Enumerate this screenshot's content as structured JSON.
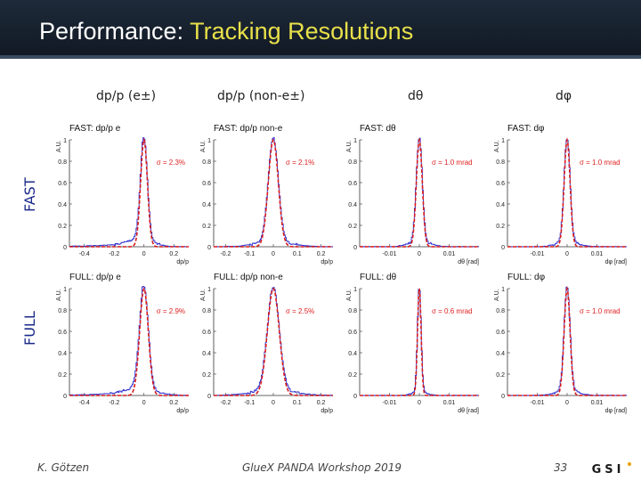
{
  "title": {
    "prefix": "Performance: ",
    "highlight": "Tracking Resolutions"
  },
  "column_headers": [
    "dp/p (e±)",
    "dp/p (non-e±)",
    "dθ",
    "dφ"
  ],
  "row_labels": [
    "FAST",
    "FULL"
  ],
  "footer": {
    "author": "K. Götzen",
    "event": "GlueX PANDA Workshop 2019",
    "page": "33"
  },
  "logo_text": "GSI",
  "colors": {
    "data": "#2a2ad0",
    "fit": "#d81c1c",
    "sigma": "#e02020"
  },
  "chart_data": [
    {
      "type": "line",
      "title": "FAST: dp/p e",
      "xlabel": "dp/p",
      "ylabel": "A.U.",
      "xticks": [
        "-0.4",
        "-0.2",
        "0",
        "0.2"
      ],
      "xlim": [
        -0.5,
        0.3
      ],
      "yticks": [
        "0",
        "0.2",
        "0.4",
        "0.6",
        "0.8",
        "1"
      ],
      "ylim": [
        0,
        1
      ],
      "annotation": "σ = 2.3%",
      "mean": 0,
      "sigma": 0.023,
      "tail": "left"
    },
    {
      "type": "line",
      "title": "FAST: dp/p non-e",
      "xlabel": "dp/p",
      "ylabel": "A.U.",
      "xticks": [
        "-0.2",
        "-0.1",
        "0",
        "0.1",
        "0.2"
      ],
      "xlim": [
        -0.25,
        0.25
      ],
      "yticks": [
        "0",
        "0.2",
        "0.4",
        "0.6",
        "0.8",
        "1"
      ],
      "ylim": [
        0,
        1
      ],
      "annotation": "σ = 2.1%",
      "mean": 0,
      "sigma": 0.021,
      "tail": "none"
    },
    {
      "type": "line",
      "title": "FAST: dθ",
      "xlabel": "dθ [rad]",
      "ylabel": "A.U.",
      "xticks": [
        "-0.01",
        "0",
        "0.01"
      ],
      "xlim": [
        -0.02,
        0.02
      ],
      "yticks": [
        "0",
        "0.2",
        "0.4",
        "0.6",
        "0.8",
        "1"
      ],
      "ylim": [
        0,
        1
      ],
      "annotation": "σ = 1.0 mrad",
      "mean": 0,
      "sigma": 0.001,
      "tail": "none"
    },
    {
      "type": "line",
      "title": "FAST: dφ",
      "xlabel": "dφ [rad]",
      "ylabel": "A.U.",
      "xticks": [
        "-0.01",
        "0",
        "0.01"
      ],
      "xlim": [
        -0.02,
        0.02
      ],
      "yticks": [
        "0",
        "0.2",
        "0.4",
        "0.6",
        "0.8",
        "1"
      ],
      "ylim": [
        0,
        1
      ],
      "annotation": "σ = 1.0 mrad",
      "mean": 0,
      "sigma": 0.001,
      "tail": "none"
    },
    {
      "type": "line",
      "title": "FULL: dp/p e",
      "xlabel": "dp/p",
      "ylabel": "A.U.",
      "xticks": [
        "-0.4",
        "-0.2",
        "0",
        "0.2"
      ],
      "xlim": [
        -0.5,
        0.3
      ],
      "yticks": [
        "0",
        "0.2",
        "0.4",
        "0.6",
        "0.8",
        "1"
      ],
      "ylim": [
        0,
        1
      ],
      "annotation": "σ = 2.9%",
      "mean": 0,
      "sigma": 0.029,
      "tail": "left"
    },
    {
      "type": "line",
      "title": "FULL: dp/p non-e",
      "xlabel": "dp/p",
      "ylabel": "A.U.",
      "xticks": [
        "-0.2",
        "-0.1",
        "0",
        "0.1",
        "0.2"
      ],
      "xlim": [
        -0.25,
        0.25
      ],
      "yticks": [
        "0",
        "0.2",
        "0.4",
        "0.6",
        "0.8",
        "1"
      ],
      "ylim": [
        0,
        1
      ],
      "annotation": "σ = 2.5%",
      "mean": 0,
      "sigma": 0.025,
      "tail": "none"
    },
    {
      "type": "line",
      "title": "FULL: dθ",
      "xlabel": "dθ [rad]",
      "ylabel": "A.U.",
      "xticks": [
        "-0.01",
        "0",
        "0.01"
      ],
      "xlim": [
        -0.02,
        0.02
      ],
      "yticks": [
        "0",
        "0.2",
        "0.4",
        "0.6",
        "0.8",
        "1"
      ],
      "ylim": [
        0,
        1
      ],
      "annotation": "σ = 0.6 mrad",
      "mean": 0,
      "sigma": 0.0006,
      "tail": "none"
    },
    {
      "type": "line",
      "title": "FULL: dφ",
      "xlabel": "dφ [rad]",
      "ylabel": "A.U.",
      "xticks": [
        "-0.01",
        "0",
        "0.01"
      ],
      "xlim": [
        -0.02,
        0.02
      ],
      "yticks": [
        "0",
        "0.2",
        "0.4",
        "0.6",
        "0.8",
        "1"
      ],
      "ylim": [
        0,
        1
      ],
      "annotation": "σ = 1.0 mrad",
      "mean": 0,
      "sigma": 0.001,
      "tail": "none"
    }
  ]
}
